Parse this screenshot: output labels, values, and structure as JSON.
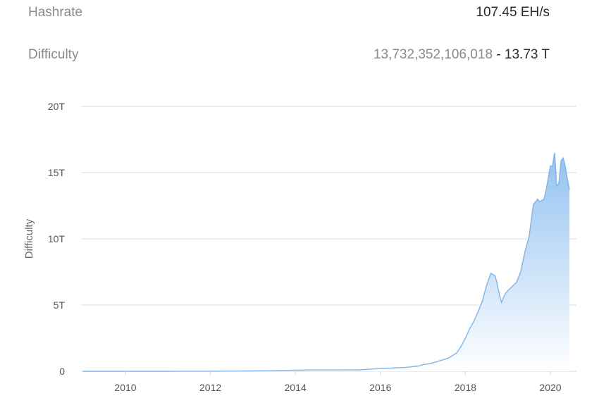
{
  "stats": {
    "hashrate": {
      "label": "Hashrate",
      "value": "107.45 EH/s"
    },
    "difficulty": {
      "label": "Difficulty",
      "raw": "13,732,352,106,018",
      "separator": " - ",
      "short": "13.73 T"
    }
  },
  "colors": {
    "line": "#7fb4e8",
    "fill_top": "#8ebff0",
    "fill_bottom": "#ffffff",
    "grid": "#dddddd",
    "axis": "#cfd8e3"
  },
  "chart_data": {
    "type": "area",
    "title": "",
    "xlabel": "",
    "ylabel": "Difficulty",
    "xlim": [
      2009.0,
      2020.5
    ],
    "ylim": [
      0,
      20
    ],
    "y_unit": "T",
    "y_ticks": [
      0,
      5,
      10,
      15,
      20
    ],
    "y_tick_labels": [
      "0",
      "5T",
      "10T",
      "15T",
      "20T"
    ],
    "x_ticks": [
      2010,
      2012,
      2014,
      2016,
      2018,
      2020
    ],
    "x_tick_labels": [
      "2010",
      "2012",
      "2014",
      "2016",
      "2018",
      "2020"
    ],
    "grid": true,
    "legend": "none",
    "series": [
      {
        "x": [
          2009.0,
          2010.0,
          2011.0,
          2012.0,
          2013.0,
          2013.5,
          2014.0,
          2014.5,
          2015.0,
          2015.5,
          2016.0,
          2016.3,
          2016.6,
          2016.9,
          2017.0,
          2017.2,
          2017.4,
          2017.6,
          2017.8,
          2017.9,
          2018.0,
          2018.1,
          2018.2,
          2018.3,
          2018.4,
          2018.5,
          2018.6,
          2018.7,
          2018.75,
          2018.8,
          2018.85,
          2018.9,
          2018.95,
          2019.0,
          2019.1,
          2019.2,
          2019.3,
          2019.4,
          2019.5,
          2019.6,
          2019.7,
          2019.75,
          2019.8,
          2019.85,
          2019.9,
          2020.0,
          2020.05,
          2020.1,
          2020.15,
          2020.2,
          2020.25,
          2020.3,
          2020.35,
          2020.4,
          2020.45
        ],
        "y": [
          0,
          0,
          0.0002,
          0.003,
          0.03,
          0.05,
          0.09,
          0.1,
          0.1,
          0.11,
          0.2,
          0.25,
          0.3,
          0.4,
          0.5,
          0.6,
          0.8,
          1.0,
          1.4,
          1.9,
          2.5,
          3.2,
          3.8,
          4.5,
          5.3,
          6.5,
          7.4,
          7.2,
          6.6,
          5.8,
          5.2,
          5.6,
          5.9,
          6.1,
          6.4,
          6.7,
          7.5,
          9.0,
          10.2,
          12.6,
          13.0,
          12.8,
          12.9,
          13.0,
          13.7,
          15.5,
          15.5,
          16.5,
          14.0,
          14.2,
          15.9,
          16.1,
          15.5,
          14.5,
          13.7
        ]
      }
    ]
  }
}
